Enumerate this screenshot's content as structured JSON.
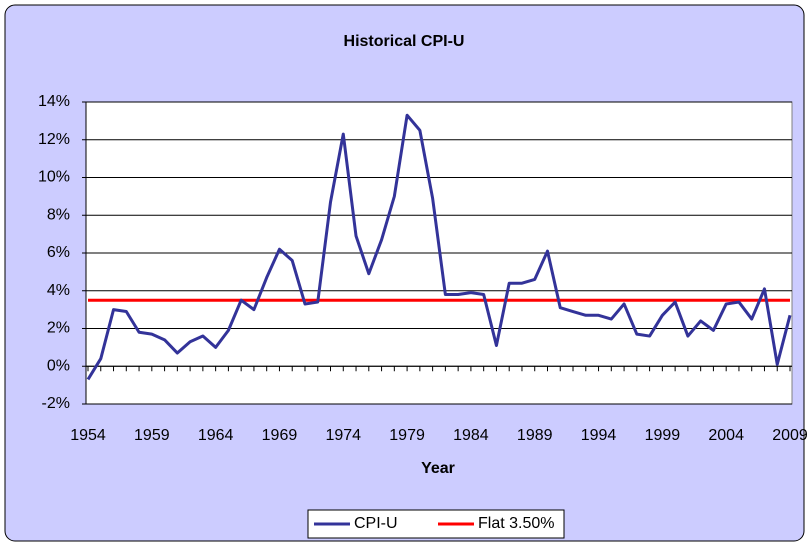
{
  "chart_data": {
    "type": "line",
    "title": "Historical CPI-U",
    "x_label": "Year",
    "x": [
      1954,
      1955,
      1956,
      1957,
      1958,
      1959,
      1960,
      1961,
      1962,
      1963,
      1964,
      1965,
      1966,
      1967,
      1968,
      1969,
      1970,
      1971,
      1972,
      1973,
      1974,
      1975,
      1976,
      1977,
      1978,
      1979,
      1980,
      1981,
      1982,
      1983,
      1984,
      1985,
      1986,
      1987,
      1988,
      1989,
      1990,
      1991,
      1992,
      1993,
      1994,
      1995,
      1996,
      1997,
      1998,
      1999,
      2000,
      2001,
      2002,
      2003,
      2004,
      2005,
      2006,
      2007,
      2008,
      2009
    ],
    "xlim": [
      1954,
      2009
    ],
    "xticks": [
      1954,
      1959,
      1964,
      1969,
      1974,
      1979,
      1984,
      1989,
      1994,
      1999,
      2004,
      2009
    ],
    "ylim": [
      -2,
      14
    ],
    "yticks": [
      {
        "value": -2,
        "label": "-2%"
      },
      {
        "value": 0,
        "label": "0%"
      },
      {
        "value": 2,
        "label": "2%"
      },
      {
        "value": 4,
        "label": "4%"
      },
      {
        "value": 6,
        "label": "6%"
      },
      {
        "value": 8,
        "label": "8%"
      },
      {
        "value": 10,
        "label": "10%"
      },
      {
        "value": 12,
        "label": "12%"
      },
      {
        "value": 14,
        "label": "14%"
      }
    ],
    "grid": true,
    "legend": "bottom",
    "series": [
      {
        "name": "CPI-U",
        "color": "#333399",
        "values": [
          -0.7,
          0.4,
          3.0,
          2.9,
          1.8,
          1.7,
          1.4,
          0.7,
          1.3,
          1.6,
          1.0,
          1.9,
          3.5,
          3.0,
          4.7,
          6.2,
          5.6,
          3.3,
          3.4,
          8.7,
          12.3,
          6.9,
          4.9,
          6.7,
          9.0,
          13.3,
          12.5,
          8.9,
          3.8,
          3.8,
          3.9,
          3.8,
          1.1,
          4.4,
          4.4,
          4.6,
          6.1,
          3.1,
          2.9,
          2.7,
          2.7,
          2.5,
          3.3,
          1.7,
          1.6,
          2.7,
          3.4,
          1.6,
          2.4,
          1.9,
          3.3,
          3.4,
          2.5,
          4.1,
          0.1,
          2.7
        ]
      },
      {
        "name": "Flat 3.50%",
        "color": "#ff0000",
        "values": [
          3.5,
          3.5,
          3.5,
          3.5,
          3.5,
          3.5,
          3.5,
          3.5,
          3.5,
          3.5,
          3.5,
          3.5,
          3.5,
          3.5,
          3.5,
          3.5,
          3.5,
          3.5,
          3.5,
          3.5,
          3.5,
          3.5,
          3.5,
          3.5,
          3.5,
          3.5,
          3.5,
          3.5,
          3.5,
          3.5,
          3.5,
          3.5,
          3.5,
          3.5,
          3.5,
          3.5,
          3.5,
          3.5,
          3.5,
          3.5,
          3.5,
          3.5,
          3.5,
          3.5,
          3.5,
          3.5,
          3.5,
          3.5,
          3.5,
          3.5,
          3.5,
          3.5,
          3.5,
          3.5,
          3.5,
          3.5
        ]
      }
    ]
  }
}
